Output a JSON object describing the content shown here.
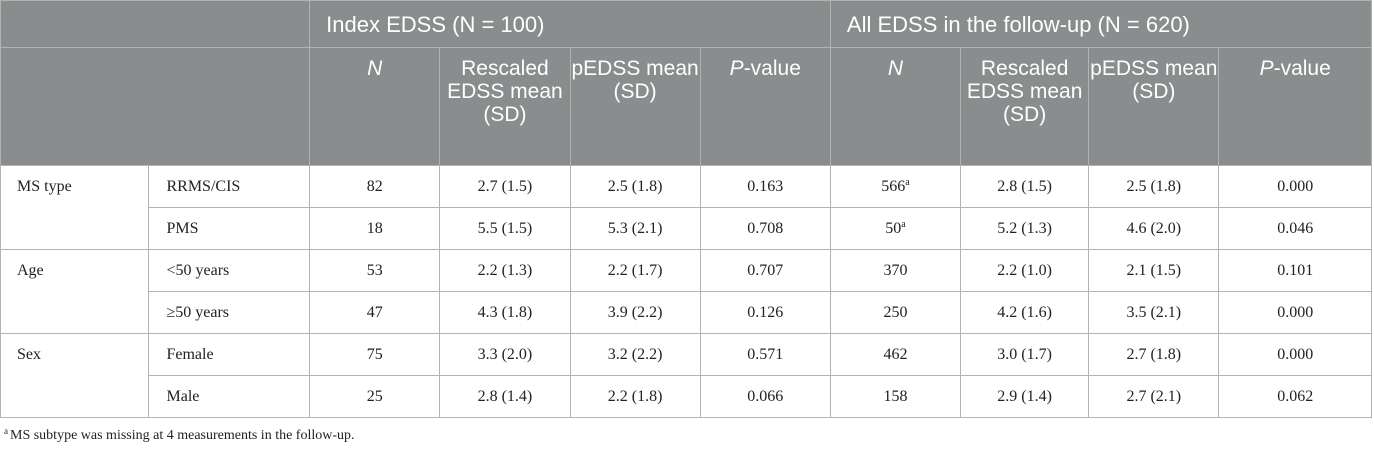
{
  "header": {
    "group1_title": "Index EDSS (N = 100)",
    "group2_title": "All EDSS in the follow-up (N = 620)",
    "n_label": "N",
    "rescaled_label": "Rescaled EDSS mean (SD)",
    "pedss_label_1": "pEDSS mean (SD)",
    "pedss_label_2": "pEDSS mean (SD)",
    "pvalue_italic": "P",
    "pvalue_suffix": "-value"
  },
  "groups": [
    {
      "label": "MS type",
      "rows": [
        {
          "sub": "RRMS/CIS",
          "n1": "82",
          "r1": "2.7 (1.5)",
          "p1": "2.5 (1.8)",
          "pv1": "0.163",
          "n2": "566",
          "n2_sup": "a",
          "r2": "2.8 (1.5)",
          "p2": "2.5 (1.8)",
          "pv2": "0.000"
        },
        {
          "sub": "PMS",
          "n1": "18",
          "r1": "5.5 (1.5)",
          "p1": "5.3 (2.1)",
          "pv1": "0.708",
          "n2": "50",
          "n2_sup": "a",
          "r2": "5.2 (1.3)",
          "p2": "4.6 (2.0)",
          "pv2": "0.046"
        }
      ]
    },
    {
      "label": "Age",
      "rows": [
        {
          "sub": "<50 years",
          "n1": "53",
          "r1": "2.2 (1.3)",
          "p1": "2.2 (1.7)",
          "pv1": "0.707",
          "n2": "370",
          "n2_sup": "",
          "r2": "2.2 (1.0)",
          "p2": "2.1 (1.5)",
          "pv2": "0.101"
        },
        {
          "sub": "≥50 years",
          "n1": "47",
          "r1": "4.3 (1.8)",
          "p1": "3.9 (2.2)",
          "pv1": "0.126",
          "n2": "250",
          "n2_sup": "",
          "r2": "4.2 (1.6)",
          "p2": "3.5 (2.1)",
          "pv2": "0.000"
        }
      ]
    },
    {
      "label": "Sex",
      "rows": [
        {
          "sub": "Female",
          "n1": "75",
          "r1": "3.3 (2.0)",
          "p1": "3.2 (2.2)",
          "pv1": "0.571",
          "n2": "462",
          "n2_sup": "",
          "r2": "3.0 (1.7)",
          "p2": "2.7 (1.8)",
          "pv2": "0.000"
        },
        {
          "sub": "Male",
          "n1": "25",
          "r1": "2.8 (1.4)",
          "p1": "2.2 (1.8)",
          "pv1": "0.066",
          "n2": "158",
          "n2_sup": "",
          "r2": "2.9 (1.4)",
          "p2": "2.7 (2.1)",
          "pv2": "0.062"
        }
      ]
    }
  ],
  "footnote": {
    "marker": "a",
    "text": "MS subtype was missing at 4 measurements in the follow-up."
  },
  "colors": {
    "header_bg": "#8a8d8e",
    "header_text": "#ffffff",
    "border": "#b3b3b3"
  }
}
